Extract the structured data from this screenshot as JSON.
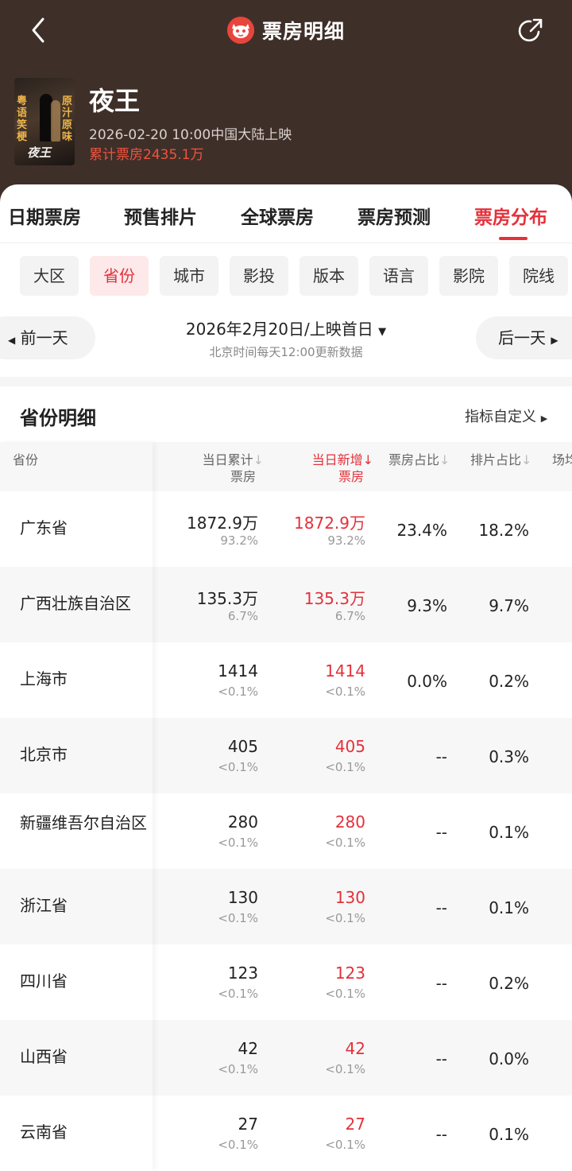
{
  "header": {
    "title": "票房明细",
    "movie_title": "夜王",
    "release": "2026-02-20 10:00中国大陆上映",
    "total_box_office": "累计票房2435.1万",
    "poster_text_left": "粤语笑梗",
    "poster_text_right": "原汁原味",
    "poster_title": "夜王"
  },
  "tabs": [
    {
      "label": "日期票房"
    },
    {
      "label": "预售排片"
    },
    {
      "label": "全球票房"
    },
    {
      "label": "票房预测"
    },
    {
      "label": "票房分布",
      "active": true
    }
  ],
  "filters": [
    {
      "label": "大区"
    },
    {
      "label": "省份",
      "active": true
    },
    {
      "label": "城市"
    },
    {
      "label": "影投"
    },
    {
      "label": "版本"
    },
    {
      "label": "语言"
    },
    {
      "label": "影院"
    },
    {
      "label": "院线"
    }
  ],
  "date_nav": {
    "prev": "前一天",
    "date": "2026年2月20日/上映首日",
    "next": "后一天",
    "note": "北京时间每天12:00更新数据"
  },
  "section": {
    "title": "省份明细",
    "custom_link": "指标自定义"
  },
  "columns": {
    "province": "省份",
    "cum_line1": "当日累计",
    "cum_line2": "票房",
    "new_line1": "当日新增",
    "new_line2": "票房",
    "share": "票房占比",
    "sched": "排片占比",
    "extra": "场均"
  },
  "rows": [
    {
      "province": "广东省",
      "cum": "1872.9万",
      "cum_pct": "93.2%",
      "new": "1872.9万",
      "new_pct": "93.2%",
      "share": "23.4%",
      "sched": "18.2%"
    },
    {
      "province": "广西壮族自治区",
      "cum": "135.3万",
      "cum_pct": "6.7%",
      "new": "135.3万",
      "new_pct": "6.7%",
      "share": "9.3%",
      "sched": "9.7%"
    },
    {
      "province": "上海市",
      "cum": "1414",
      "cum_pct": "<0.1%",
      "new": "1414",
      "new_pct": "<0.1%",
      "share": "0.0%",
      "sched": "0.2%"
    },
    {
      "province": "北京市",
      "cum": "405",
      "cum_pct": "<0.1%",
      "new": "405",
      "new_pct": "<0.1%",
      "share": "--",
      "sched": "0.3%"
    },
    {
      "province": "新疆维吾尔自治区",
      "cum": "280",
      "cum_pct": "<0.1%",
      "new": "280",
      "new_pct": "<0.1%",
      "share": "--",
      "sched": "0.1%"
    },
    {
      "province": "浙江省",
      "cum": "130",
      "cum_pct": "<0.1%",
      "new": "130",
      "new_pct": "<0.1%",
      "share": "--",
      "sched": "0.1%"
    },
    {
      "province": "四川省",
      "cum": "123",
      "cum_pct": "<0.1%",
      "new": "123",
      "new_pct": "<0.1%",
      "share": "--",
      "sched": "0.2%"
    },
    {
      "province": "山西省",
      "cum": "42",
      "cum_pct": "<0.1%",
      "new": "42",
      "new_pct": "<0.1%",
      "share": "--",
      "sched": "0.0%"
    },
    {
      "province": "云南省",
      "cum": "27",
      "cum_pct": "<0.1%",
      "new": "27",
      "new_pct": "<0.1%",
      "share": "--",
      "sched": "0.1%"
    }
  ],
  "colors": {
    "header_bg": "#3f2f29",
    "accent_red": "#e5303a"
  }
}
